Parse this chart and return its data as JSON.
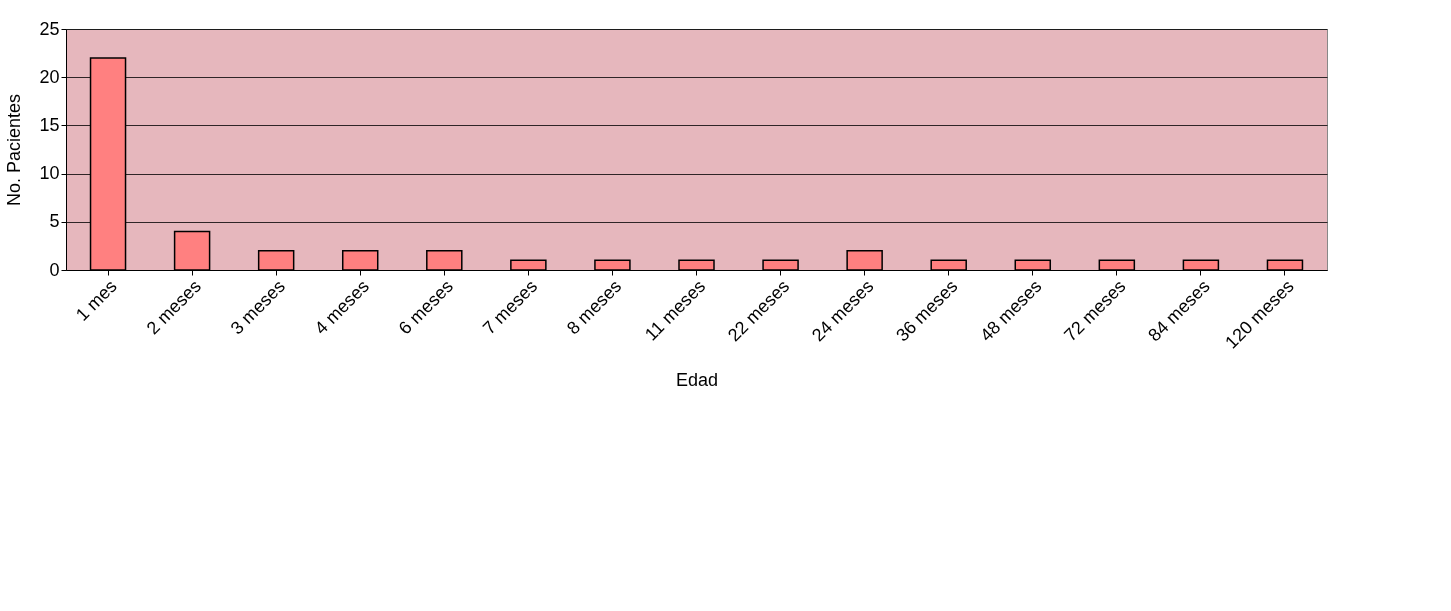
{
  "chart_data": {
    "type": "bar",
    "xlabel": "Edad",
    "ylabel": "No. Pacientes",
    "categories": [
      "1 mes",
      "2 meses",
      "3 meses",
      "4 meses",
      "6 meses",
      "7 meses",
      "8 meses",
      "11 meses",
      "22 meses",
      "24 meses",
      "36 meses",
      "48 meses",
      "72 meses",
      "84 meses",
      "120 meses"
    ],
    "values": [
      22,
      4,
      2,
      2,
      2,
      1,
      1,
      1,
      1,
      2,
      1,
      1,
      1,
      1,
      1
    ],
    "color": "#ff8080",
    "ylim": [
      0,
      25
    ],
    "yticks": [
      0,
      5,
      10,
      15,
      20,
      25
    ],
    "grid": "y"
  }
}
